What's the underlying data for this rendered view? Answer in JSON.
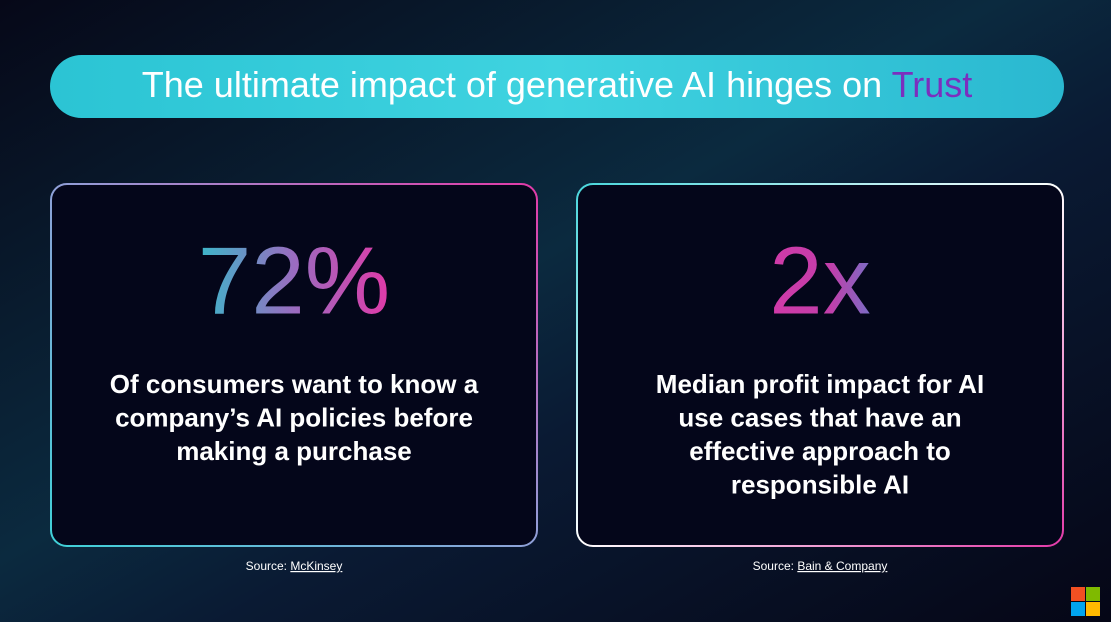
{
  "header": {
    "title": "The ultimate impact of generative AI hinges on",
    "highlight": "Trust"
  },
  "cards": [
    {
      "stat": "72%",
      "lines": [
        "Of consumers want to know a",
        "company’s AI policies before",
        "making a purchase"
      ],
      "source_label": "Source:",
      "source": "McKinsey"
    },
    {
      "stat": "2x",
      "lines": [
        "Median profit impact for AI",
        "use cases that have an",
        "effective approach to",
        "responsible AI"
      ],
      "source_label": "Source:",
      "source": "Bain & Company"
    }
  ]
}
